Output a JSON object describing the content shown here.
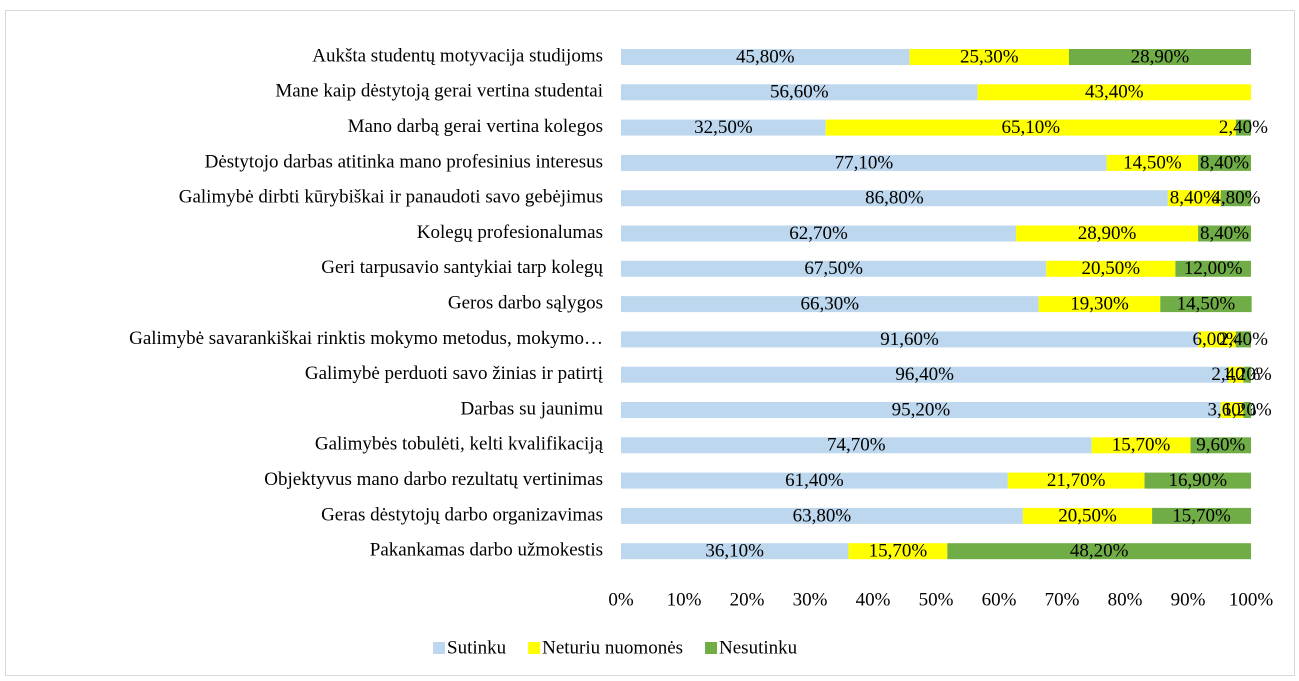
{
  "chart_data": {
    "type": "stacked_bar_horizontal",
    "categories": [
      "Aukšta studentų motyvacija studijoms",
      "Mane kaip dėstytoją gerai vertina studentai",
      "Mano darbą gerai vertina kolegos",
      "Dėstytojo darbas atitinka mano profesinius interesus",
      "Galimybė dirbti kūrybiškai ir panaudoti savo gebėjimus",
      "Kolegų profesionalumas",
      "Geri tarpusavio santykiai tarp kolegų",
      "Geros darbo sąlygos",
      "Galimybė savarankiškai rinktis mokymo metodus, mokymo…",
      "Galimybė perduoti savo žinias ir patirtį",
      "Darbas su jaunimu",
      "Galimybės tobulėti, kelti kvalifikaciją",
      "Objektyvus mano darbo rezultatų vertinimas",
      "Geras dėstytojų darbo organizavimas",
      "Pakankamas darbo užmokestis"
    ],
    "series": [
      {
        "name": "Sutinku",
        "color": "#bdd7ee",
        "values": [
          45.8,
          56.6,
          32.5,
          77.1,
          86.8,
          62.7,
          67.5,
          66.3,
          91.6,
          96.4,
          95.2,
          74.7,
          61.4,
          63.8,
          36.1
        ],
        "value_labels": [
          "45,80%",
          "56,60%",
          "32,50%",
          "77,10%",
          "86,80%",
          "62,70%",
          "67,50%",
          "66,30%",
          "91,60%",
          "96,40%",
          "95,20%",
          "74,70%",
          "61,40%",
          "63,80%",
          "36,10%"
        ]
      },
      {
        "name": "Neturiu nuomonės",
        "color": "#ffff00",
        "values": [
          25.3,
          43.4,
          65.1,
          14.5,
          8.4,
          28.9,
          20.5,
          19.3,
          6.0,
          2.4,
          3.6,
          15.7,
          21.7,
          20.5,
          15.7
        ],
        "value_labels": [
          "25,30%",
          "43,40%",
          "65,10%",
          "14,50%",
          "8,40%",
          "28,90%",
          "20,50%",
          "19,30%",
          "6,00%",
          "2,40%",
          "3,60%",
          "15,70%",
          "21,70%",
          "20,50%",
          "15,70%"
        ]
      },
      {
        "name": "Nesutinku",
        "color": "#70ad47",
        "values": [
          28.9,
          null,
          2.4,
          8.4,
          4.8,
          8.4,
          12.0,
          14.5,
          2.4,
          1.2,
          1.2,
          9.6,
          16.9,
          15.7,
          48.2
        ],
        "value_labels": [
          "28,90%",
          null,
          "2,40%",
          "8,40%",
          "4,80%",
          "8,40%",
          "12,00%",
          "14,50%",
          "2,40%",
          "1,20%",
          "1,20%",
          "9,60%",
          "16,90%",
          "15,70%",
          "48,20%"
        ]
      }
    ],
    "xlim": [
      0,
      100
    ],
    "xticks": [
      {
        "value": 0,
        "label": "0%"
      },
      {
        "value": 10,
        "label": "10%"
      },
      {
        "value": 20,
        "label": "20%"
      },
      {
        "value": 30,
        "label": "30%"
      },
      {
        "value": 40,
        "label": "40%"
      },
      {
        "value": 50,
        "label": "50%"
      },
      {
        "value": 60,
        "label": "60%"
      },
      {
        "value": 70,
        "label": "70%"
      },
      {
        "value": 80,
        "label": "80%"
      },
      {
        "value": 90,
        "label": "90%"
      },
      {
        "value": 100,
        "label": "100%"
      }
    ],
    "legend": "bottom"
  }
}
